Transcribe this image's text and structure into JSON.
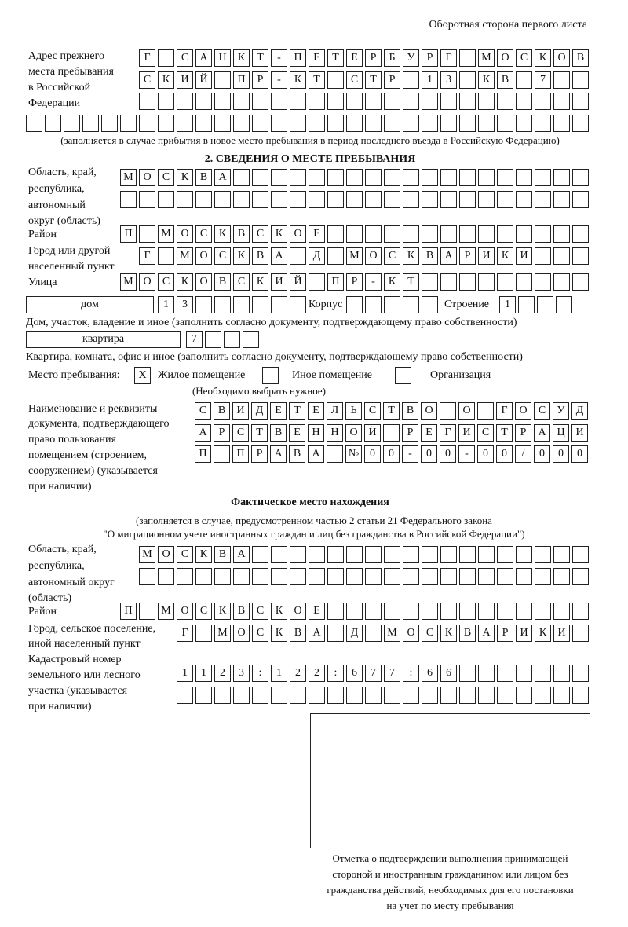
{
  "header": "Оборотная сторона первого листа",
  "previous_address": {
    "label": [
      "Адрес прежнего",
      "места пребывания",
      "в Российской",
      "Федерации"
    ],
    "rows": [
      "Г САНКТ-ПЕТЕРБУРГ МОСКОВ",
      "СКИЙ ПР-КТ СТР 13 КВ 7",
      "",
      ""
    ],
    "note": "(заполняется в случае прибытия в новое место пребывания в период последнего въезда в Российскую Федерацию)"
  },
  "section2": {
    "title": "2. СВЕДЕНИЯ О МЕСТЕ ПРЕБЫВАНИЯ",
    "region_label": [
      "Область, край,",
      "республика,",
      "автономный",
      "округ (область)"
    ],
    "region_rows": [
      "МОСКВА",
      ""
    ],
    "district_label": "Район",
    "district": "П МОСКВСКОЕ",
    "city_label": [
      "Город или другой",
      "населенный пункт"
    ],
    "city": "Г МОСКВА Д МОСКВАРИКИ",
    "street_label": "Улица",
    "street": "МОСКОВСКИЙ ПР-КТ",
    "house_type": "дом",
    "house_number": "13",
    "korpus_label": "Корпус",
    "korpus": "",
    "building_label": "Строение",
    "building": "1",
    "house_note": "Дом, участок, владение и иное (заполнить согласно документу, подтверждающему право собственности)",
    "apartment_type": "квартира",
    "apartment_number": "7",
    "apartment_note": "Квартира, комната, офис и иное (заполнить согласно документу, подтверждающему право собственности)",
    "stay_place_label": "Место пребывания:",
    "stay_options": [
      {
        "label": "Жилое помещение",
        "mark": "X"
      },
      {
        "label": "Иное помещение",
        "mark": ""
      },
      {
        "label": "Организация",
        "mark": ""
      }
    ],
    "stay_hint": "(Необходимо выбрать нужное)",
    "document_label": [
      "Наименование и реквизиты",
      "документа, подтверждающего",
      "право пользования",
      "помещением (строением,",
      "сооружением) (указывается",
      "при наличии)"
    ],
    "document_rows": [
      "СВИДЕТЕЛЬСТВО О ГОСУД",
      "АРСТВЕННОЙ РЕГИСТРАЦИ",
      "П ПРАВА №00-00-00/000"
    ]
  },
  "actual": {
    "title": "Фактическое место нахождения",
    "note": [
      "(заполняется в случае, предусмотренном частью 2 статьи 21 Федерального закона",
      "\"О миграционном учете иностранных граждан и лиц без гражданства в Российской Федерации\")"
    ],
    "region_label": [
      "Область, край,",
      "республика,",
      "автономный округ",
      "(область)"
    ],
    "region_rows": [
      "МОСКВА",
      ""
    ],
    "district_label": "Район",
    "district": "П МОСКВСКОЕ",
    "city_label": [
      "Город, сельское поселение,",
      "иной населенный пункт"
    ],
    "city": "Г МОСКВА Д МОСКВАРИКИ",
    "cadastre_label": [
      "Кадастровый номер",
      "земельного или лесного",
      "участка (указывается",
      "при наличии)"
    ],
    "cadastre_rows": [
      "1123:122:677:66",
      ""
    ]
  },
  "confirmation": [
    "Отметка о подтверждении выполнения принимающей",
    "стороной и иностранным гражданином или лицом без",
    "гражданства действий, необходимых для его постановки",
    "на учет по месту пребывания"
  ]
}
